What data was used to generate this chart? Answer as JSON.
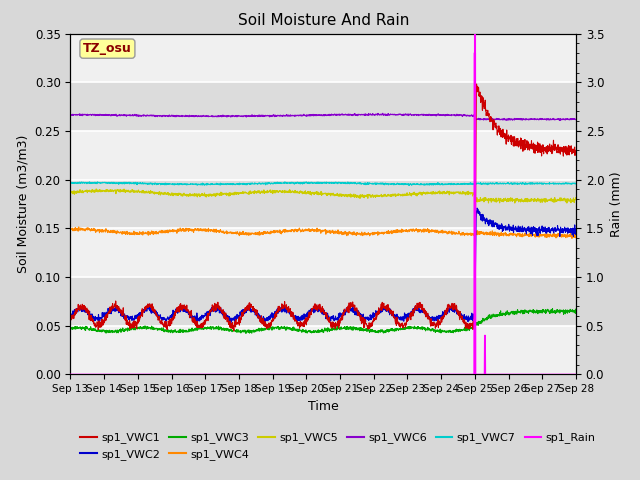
{
  "title": "Soil Moisture And Rain",
  "xlabel": "Time",
  "ylabel_left": "Soil Moisture (m3/m3)",
  "ylabel_right": "Rain (mm)",
  "xlim_days": [
    13,
    28
  ],
  "ylim_left": [
    0,
    0.35
  ],
  "ylim_right": [
    0,
    3.5
  ],
  "station_label": "TZ_osu",
  "station_label_color": "#8B0000",
  "station_box_color": "#FFFF99",
  "station_box_edge": "#999999",
  "background_color": "#D8D8D8",
  "plot_bg_color": "#E8E8E8",
  "band1_color": "#DCDCDC",
  "band2_color": "#F0F0F0",
  "grid_color": "#FFFFFF",
  "colors": {
    "VWC1": "#CC0000",
    "VWC2": "#0000CC",
    "VWC3": "#00AA00",
    "VWC4": "#FF8800",
    "VWC5": "#CCCC00",
    "VWC6": "#8800CC",
    "VWC7": "#00CCCC",
    "Rain": "#FF00FF"
  },
  "legend_labels": [
    "sp1_VWC1",
    "sp1_VWC2",
    "sp1_VWC3",
    "sp1_VWC4",
    "sp1_VWC5",
    "sp1_VWC6",
    "sp1_VWC7",
    "sp1_Rain"
  ],
  "rain_event_day": 12.0,
  "rain_event_amount": 3.3,
  "rain_small_day": 12.3,
  "rain_small_amount": 0.4,
  "figsize": [
    6.4,
    4.8
  ],
  "dpi": 100
}
